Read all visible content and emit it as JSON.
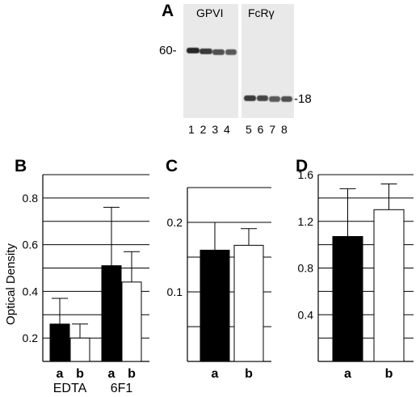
{
  "blot": {
    "panel_label": "A",
    "left_title": "GPVI",
    "right_title": "FcRγ",
    "mw_left": "60-",
    "mw_right": "-18",
    "lane_numbers_left": "1 2 3 4",
    "lane_numbers_right": "5 6 7 8"
  },
  "chart_data": [
    {
      "panel": "B",
      "type": "bar",
      "ylabel": "Optical Density",
      "ylim": [
        0.1,
        0.9
      ],
      "yticks": [
        "0.2",
        "0.4",
        "0.6",
        "0.8"
      ],
      "groups": [
        "EDTA",
        "6F1"
      ],
      "categories": [
        "a",
        "b",
        "a",
        "b"
      ],
      "values": [
        0.26,
        0.2,
        0.51,
        0.44
      ],
      "errors": [
        0.11,
        0.06,
        0.25,
        0.13
      ],
      "fills": [
        "#000000",
        "#ffffff",
        "#000000",
        "#ffffff"
      ]
    },
    {
      "panel": "C",
      "type": "bar",
      "ylim": [
        0.0,
        0.25
      ],
      "yticks": [
        "0.1",
        "0.2"
      ],
      "categories": [
        "a",
        "b"
      ],
      "values": [
        0.16,
        0.167
      ],
      "errors": [
        0.04,
        0.024
      ],
      "fills": [
        "#000000",
        "#ffffff"
      ]
    },
    {
      "panel": "D",
      "type": "bar",
      "ylim": [
        0.0,
        1.6
      ],
      "yticks": [
        "0.4",
        "0.8",
        "1.2",
        "1.6"
      ],
      "categories": [
        "a",
        "b"
      ],
      "values": [
        1.07,
        1.3
      ],
      "errors": [
        0.41,
        0.22
      ],
      "fills": [
        "#000000",
        "#ffffff"
      ]
    }
  ]
}
